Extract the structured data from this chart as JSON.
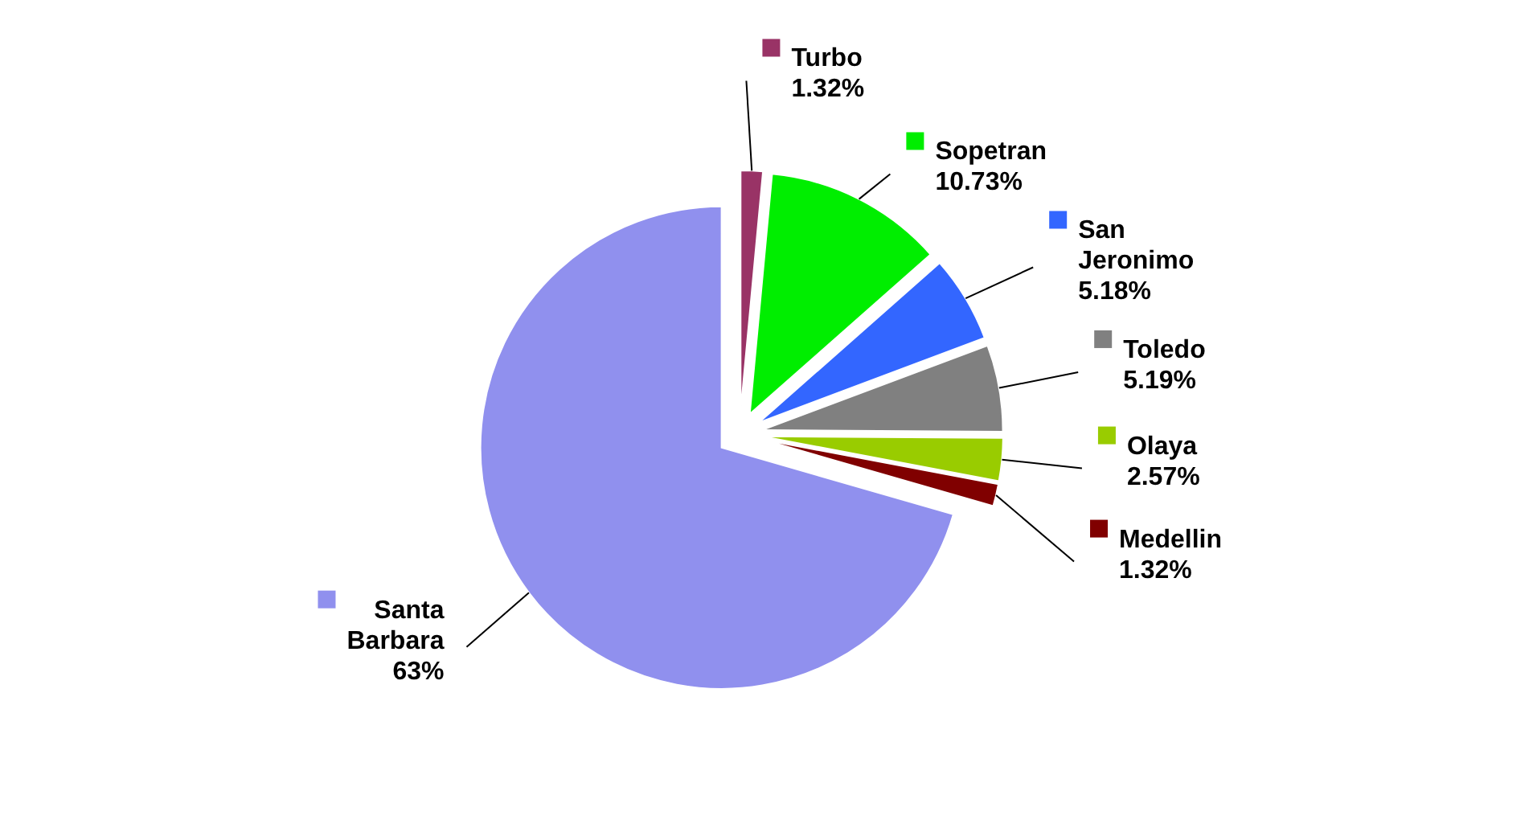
{
  "chart_data": {
    "type": "pie",
    "categories": [
      "Santa Barbara",
      "Turbo",
      "Sopetran",
      "San Jeronimo",
      "Toledo",
      "Olaya",
      "Medellin"
    ],
    "values": [
      63,
      1.32,
      10.73,
      5.18,
      5.19,
      2.57,
      1.32
    ],
    "value_labels": [
      "63%",
      "1.32%",
      "10.73%",
      "5.18%",
      "5.19%",
      "2.57%",
      "1.32%"
    ],
    "legend": "right",
    "colors": [
      "#9090ee",
      "#993366",
      "#00ee00",
      "#3366ff",
      "#808080",
      "#99cc00",
      "#800000"
    ]
  }
}
